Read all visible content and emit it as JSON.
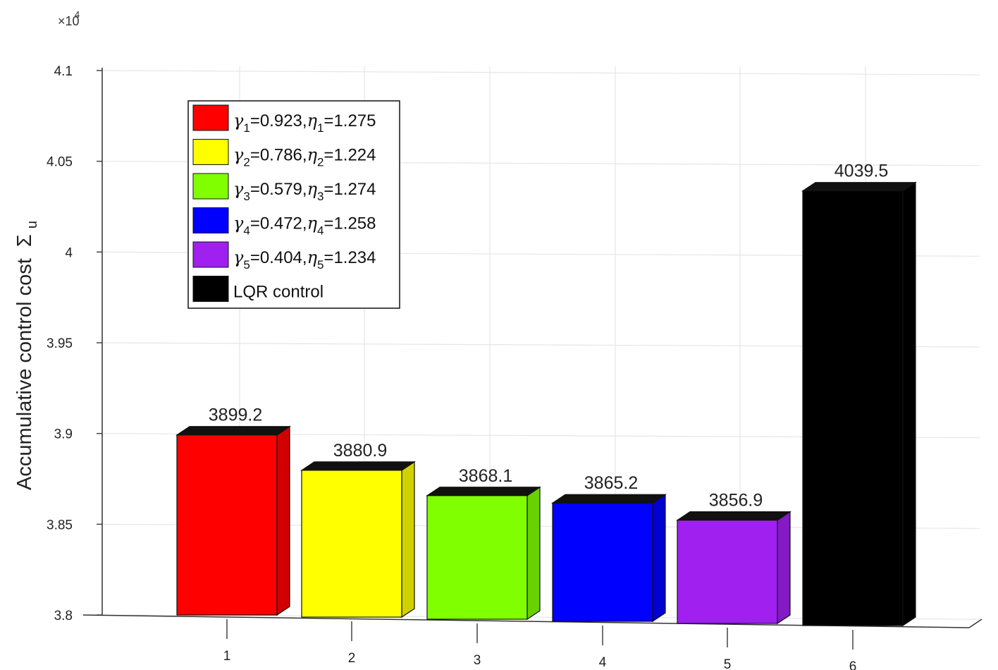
{
  "chart_data": {
    "type": "bar",
    "categories": [
      "1",
      "2",
      "3",
      "4",
      "5",
      "6"
    ],
    "values": [
      3899.2,
      3880.9,
      3868.1,
      3865.2,
      3856.9,
      4039.5
    ],
    "data_labels": [
      "3899.2",
      "3880.9",
      "3868.1",
      "3865.2",
      "3856.9",
      "4039.5"
    ],
    "colors": [
      "#ff0000",
      "#ffff00",
      "#7fff00",
      "#0000ff",
      "#a020f0",
      "#000000"
    ],
    "ylabel": "Accumulative control cost",
    "ylabel_symbol": "Σ",
    "ylabel_subscript": "u",
    "ylim": [
      3.8,
      4.1
    ],
    "y_ticks": [
      3.8,
      3.85,
      3.9,
      3.95,
      4,
      4.05,
      4.1
    ],
    "y_tick_labels": [
      "3.8",
      "3.85",
      "3.9",
      "3.95",
      "4",
      "4.05",
      "4.1"
    ],
    "y_exponent_base": "×10",
    "y_exponent_power": "4",
    "grid": true,
    "legend_position": "top-left",
    "legend": [
      {
        "g": "γ",
        "gs": "1",
        "gv": "=0.923,",
        "e": "η",
        "es": "1",
        "ev": "=1.275",
        "color": "#ff0000"
      },
      {
        "g": "γ",
        "gs": "2",
        "gv": "=0.786,",
        "e": "η",
        "es": "2",
        "ev": "=1.224",
        "color": "#ffff00"
      },
      {
        "g": "γ",
        "gs": "3",
        "gv": "=0.579,",
        "e": "η",
        "es": "3",
        "ev": "=1.274",
        "color": "#7fff00"
      },
      {
        "g": "γ",
        "gs": "4",
        "gv": "=0.472,",
        "e": "η",
        "es": "4",
        "ev": "=1.258",
        "color": "#0000ff"
      },
      {
        "g": "γ",
        "gs": "5",
        "gv": "=0.404,",
        "e": "η",
        "es": "5",
        "ev": "=1.234",
        "color": "#a020f0"
      },
      {
        "plain": "LQR control",
        "color": "#000000"
      }
    ]
  }
}
